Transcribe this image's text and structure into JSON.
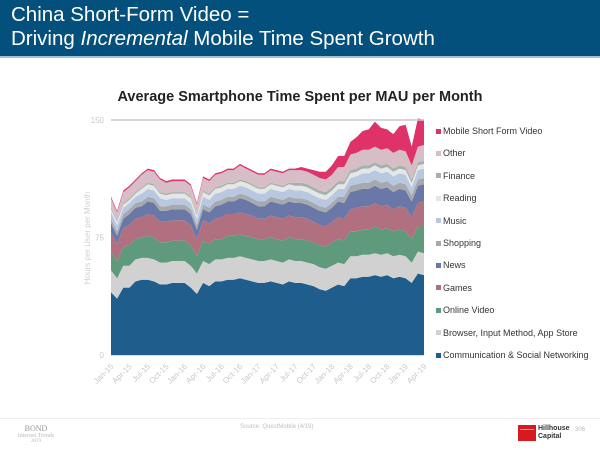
{
  "header": {
    "line1": "China Short-Form Video =",
    "line2_pre": "Driving ",
    "line2_em": "Incremental",
    "line2_post": " Mobile Time Spent Growth"
  },
  "footer": {
    "bond": "BOND",
    "internet_trends": "Internet Trends",
    "year": "2019",
    "source": "Source: QuestMobile (4/19)",
    "partner_line1": "Hillhouse",
    "partner_line2": "Capital",
    "page_number": "306"
  },
  "chart_data": {
    "type": "area",
    "stacked": true,
    "title": "Average Smartphone Time Spent per MAU per Month",
    "xlabel": "",
    "ylabel": "Hours per User per Month",
    "ylim": [
      0,
      150
    ],
    "yticks": [
      0,
      75,
      150
    ],
    "grid": false,
    "legend_position": "right",
    "x_tick_labels": [
      "Jan-15",
      "Apr-15",
      "Jul-15",
      "Oct-15",
      "Jan-16",
      "Apr-16",
      "Jul-16",
      "Oct-16",
      "Jan-17",
      "Apr-17",
      "Jul-17",
      "Oct-17",
      "Jan-18",
      "Apr-18",
      "Jul-18",
      "Oct-18",
      "Jan-19",
      "Apr-19"
    ],
    "x": [
      "Jan-15",
      "Feb-15",
      "Mar-15",
      "Apr-15",
      "May-15",
      "Jun-15",
      "Jul-15",
      "Aug-15",
      "Sep-15",
      "Oct-15",
      "Nov-15",
      "Dec-15",
      "Jan-16",
      "Feb-16",
      "Mar-16",
      "Apr-16",
      "May-16",
      "Jun-16",
      "Jul-16",
      "Aug-16",
      "Sep-16",
      "Oct-16",
      "Nov-16",
      "Dec-16",
      "Jan-17",
      "Feb-17",
      "Mar-17",
      "Apr-17",
      "May-17",
      "Jun-17",
      "Jul-17",
      "Aug-17",
      "Sep-17",
      "Oct-17",
      "Nov-17",
      "Dec-17",
      "Jan-18",
      "Feb-18",
      "Mar-18",
      "Apr-18",
      "May-18",
      "Jun-18",
      "Jul-18",
      "Aug-18",
      "Sep-18",
      "Oct-18",
      "Nov-18",
      "Dec-18",
      "Jan-19",
      "Feb-19",
      "Mar-19",
      "Apr-19"
    ],
    "series": [
      {
        "name": "Communication & Social Networking",
        "color": "#1f5e8c",
        "values": [
          40,
          36,
          43,
          43,
          47,
          48,
          48,
          47,
          45,
          45,
          46,
          46,
          46,
          43,
          39,
          46,
          44,
          47,
          47,
          48,
          48,
          49,
          48,
          47,
          46,
          46,
          47,
          46,
          45,
          47,
          46,
          46,
          45,
          44,
          42,
          41,
          43,
          45,
          44,
          49,
          49,
          50,
          50,
          51,
          50,
          51,
          49,
          50,
          49,
          46,
          52,
          51
        ]
      },
      {
        "name": "Browser, Input Method, App Store",
        "color": "#d1d1d1",
        "values": [
          14,
          13,
          14,
          14,
          14,
          14,
          14,
          14,
          14,
          14,
          14,
          14,
          14,
          14,
          13,
          14,
          14,
          14,
          14,
          14,
          14,
          14,
          14,
          14,
          14,
          14,
          14,
          14,
          14,
          14,
          14,
          14,
          14,
          14,
          14,
          14,
          14,
          14,
          14,
          14,
          14,
          14,
          14,
          14,
          14,
          14,
          14,
          14,
          14,
          13,
          14,
          14
        ]
      },
      {
        "name": "Online Video",
        "color": "#5f9a7d",
        "values": [
          12,
          11,
          12,
          13,
          13,
          13,
          14,
          14,
          13,
          13,
          13,
          13,
          13,
          13,
          11,
          13,
          13,
          13,
          13,
          14,
          14,
          14,
          14,
          14,
          14,
          14,
          14,
          14,
          14,
          14,
          14,
          14,
          14,
          14,
          14,
          14,
          15,
          15,
          15,
          16,
          16,
          16,
          16,
          17,
          16,
          16,
          16,
          16,
          16,
          15,
          16,
          17
        ]
      },
      {
        "name": "Games",
        "color": "#b0707f",
        "values": [
          12,
          11,
          12,
          13,
          13,
          13,
          14,
          14,
          13,
          13,
          13,
          13,
          13,
          13,
          11,
          13,
          13,
          13,
          14,
          14,
          14,
          14,
          14,
          14,
          13,
          13,
          14,
          14,
          14,
          14,
          14,
          14,
          14,
          13,
          13,
          13,
          13,
          14,
          14,
          14,
          15,
          15,
          15,
          15,
          15,
          15,
          14,
          15,
          15,
          14,
          15,
          16
        ]
      },
      {
        "name": "News",
        "color": "#6a78a8",
        "values": [
          6,
          5,
          6,
          7,
          7,
          7,
          8,
          8,
          7,
          7,
          7,
          7,
          7,
          7,
          6,
          7,
          7,
          8,
          8,
          8,
          8,
          9,
          9,
          8,
          8,
          8,
          9,
          9,
          9,
          9,
          9,
          9,
          9,
          9,
          9,
          9,
          9,
          10,
          10,
          11,
          11,
          11,
          11,
          11,
          11,
          11,
          11,
          11,
          11,
          10,
          11,
          11
        ]
      },
      {
        "name": "Shopping",
        "color": "#a6a9ad",
        "values": [
          3,
          3,
          3,
          3,
          3,
          3,
          3,
          3,
          3,
          3,
          3,
          3,
          3,
          3,
          3,
          3,
          3,
          3,
          3,
          3,
          3,
          3,
          3,
          3,
          3,
          3,
          3,
          3,
          3,
          3,
          3,
          3,
          3,
          3,
          3,
          3,
          3,
          3,
          4,
          4,
          4,
          4,
          4,
          4,
          4,
          4,
          4,
          4,
          4,
          4,
          4,
          4
        ]
      },
      {
        "name": "Music",
        "color": "#b8c8e0",
        "values": [
          4,
          4,
          4,
          4,
          4,
          5,
          5,
          5,
          5,
          4,
          4,
          4,
          4,
          4,
          4,
          5,
          5,
          5,
          5,
          5,
          5,
          5,
          5,
          5,
          5,
          5,
          5,
          5,
          5,
          5,
          5,
          5,
          5,
          5,
          5,
          5,
          5,
          5,
          5,
          5,
          5,
          6,
          6,
          6,
          6,
          6,
          6,
          6,
          6,
          5,
          6,
          6
        ]
      },
      {
        "name": "Reading",
        "color": "#e6e6e6",
        "values": [
          2,
          2,
          2,
          2,
          2,
          3,
          3,
          3,
          3,
          3,
          3,
          3,
          3,
          3,
          2,
          3,
          3,
          3,
          3,
          3,
          3,
          3,
          3,
          3,
          3,
          3,
          3,
          3,
          3,
          3,
          3,
          3,
          3,
          3,
          3,
          3,
          3,
          3,
          3,
          3,
          3,
          3,
          3,
          3,
          3,
          3,
          3,
          3,
          3,
          3,
          3,
          3
        ]
      },
      {
        "name": "Finance",
        "color": "#a3b2aa",
        "values": [
          1,
          1,
          1,
          1,
          1,
          1,
          1,
          1,
          1,
          1,
          1,
          1,
          1,
          1,
          1,
          1,
          1,
          1,
          1,
          1,
          1,
          1,
          1,
          1,
          1,
          1,
          1,
          1,
          1,
          1,
          2,
          2,
          2,
          2,
          2,
          2,
          2,
          2,
          2,
          2,
          2,
          2,
          2,
          2,
          2,
          2,
          2,
          2,
          2,
          2,
          2,
          2
        ]
      },
      {
        "name": "Other",
        "color": "#d7bdc5",
        "values": [
          6,
          5,
          7,
          7,
          7,
          8,
          8,
          8,
          8,
          7,
          7,
          7,
          7,
          7,
          6,
          8,
          8,
          8,
          8,
          8,
          8,
          9,
          8,
          8,
          8,
          8,
          8,
          8,
          8,
          8,
          8,
          8,
          8,
          8,
          8,
          8,
          8,
          9,
          9,
          10,
          10,
          10,
          10,
          10,
          10,
          10,
          10,
          10,
          10,
          9,
          10,
          10
        ]
      },
      {
        "name": "Mobile Short Form Video",
        "color": "#de3268",
        "values": [
          1,
          1,
          1,
          1,
          1,
          1,
          1,
          1,
          1,
          1,
          1,
          1,
          1,
          1,
          1,
          1,
          1,
          1,
          1,
          1,
          1,
          1,
          1,
          1,
          1,
          1,
          1,
          1,
          1,
          1,
          1,
          2,
          2,
          3,
          4,
          5,
          6,
          7,
          7,
          8,
          10,
          12,
          13,
          16,
          14,
          12,
          12,
          15,
          17,
          12,
          18,
          16
        ]
      }
    ]
  }
}
